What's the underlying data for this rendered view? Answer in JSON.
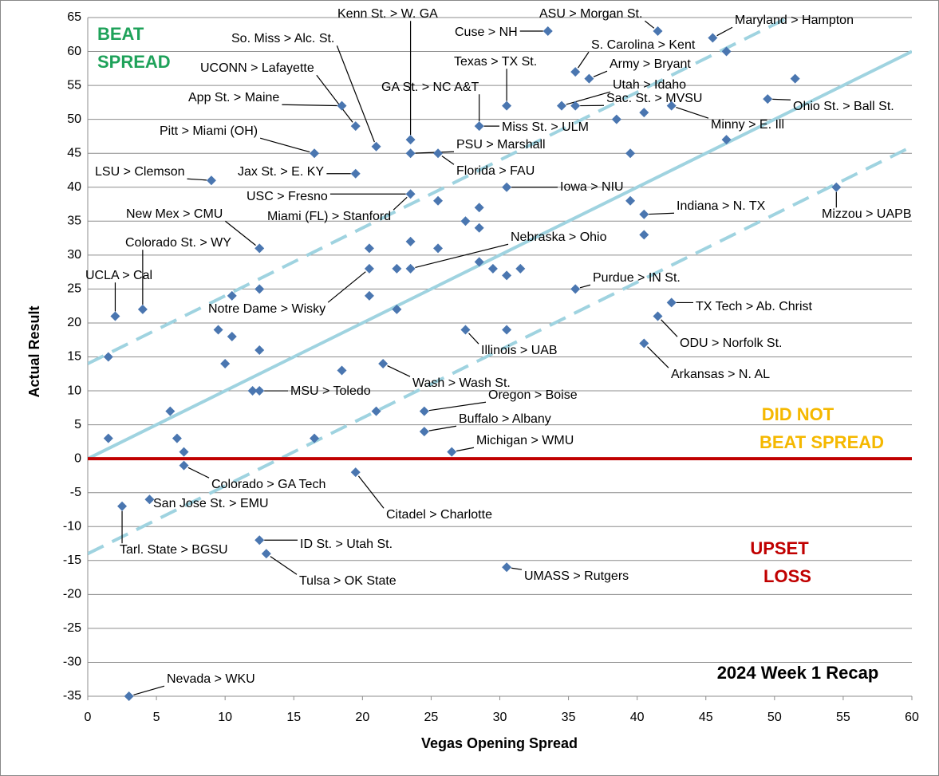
{
  "chart_data": {
    "type": "scatter",
    "xlabel": "Vegas Opening Spread",
    "ylabel": "Actual Result",
    "color": "#4a76b0",
    "x": [
      1.5,
      1.5,
      2,
      2.5,
      3,
      4,
      4.5,
      6,
      6.5,
      7,
      7,
      9,
      9.5,
      10,
      10.5,
      10.5,
      12,
      12.5,
      12.5,
      12.5,
      12.5,
      12.5,
      13,
      16.5,
      16.5,
      18.5,
      18.5,
      19.5,
      19.5,
      19.5,
      20.5,
      20.5,
      20.5,
      21,
      21,
      21.5,
      22.5,
      22.5,
      23.5,
      23.5,
      23.5,
      23.5,
      23.5,
      24.5,
      24.5,
      25.5,
      25.5,
      25.5,
      26.5,
      27.5,
      27.5,
      28.5,
      28.5,
      28.5,
      28.5,
      29.5,
      30.5,
      30.5,
      30.5,
      30.5,
      30.5,
      31.5,
      33.5,
      34.5,
      35.5,
      35.5,
      35.5,
      36.5,
      38.5,
      39.5,
      39.5,
      40.5,
      40.5,
      40.5,
      40.5,
      41.5,
      41.5,
      42.5,
      42.5,
      45.5,
      46.5,
      46.5,
      49.5,
      51.5,
      54.5
    ],
    "values": [
      3,
      15,
      21,
      -7,
      -35,
      22,
      -6,
      7,
      3,
      1,
      -1,
      41,
      19,
      14,
      24,
      18,
      10,
      10,
      31,
      25,
      16,
      -12,
      -14,
      3,
      45,
      13,
      52,
      49,
      42,
      -2,
      31,
      28,
      24,
      46,
      7,
      14,
      28,
      22,
      47,
      45,
      39,
      32,
      28,
      7,
      4,
      45,
      38,
      31,
      1,
      35,
      19,
      49,
      37,
      34,
      29,
      28,
      52,
      40,
      27,
      19,
      -16,
      28,
      63,
      52,
      57,
      52,
      25,
      56,
      50,
      45,
      38,
      51,
      36,
      33,
      17,
      63,
      21,
      52,
      23,
      62,
      60,
      47,
      53,
      56,
      40
    ],
    "xlim": [
      0,
      60
    ],
    "xticks": [
      0,
      5,
      10,
      15,
      20,
      25,
      30,
      35,
      40,
      45,
      50,
      55,
      60
    ],
    "ylim": [
      -35,
      65
    ],
    "yticks": [
      -35,
      -30,
      -25,
      -20,
      -15,
      -10,
      -5,
      0,
      5,
      10,
      15,
      20,
      25,
      30,
      35,
      40,
      45,
      50,
      55,
      60,
      65
    ],
    "grid": true,
    "reference_lines": [
      {
        "slope": 1,
        "intercept": 0,
        "dashed": false,
        "color": "#9fd3e0"
      },
      {
        "slope": 1,
        "intercept": 14,
        "dashed": true,
        "color": "#9fd3e0"
      },
      {
        "slope": 1,
        "intercept": -14,
        "dashed": true,
        "color": "#9fd3e0"
      }
    ],
    "zero_line": {
      "y": 0,
      "color": "#c00000"
    },
    "annotations": [
      "Nevada > WKU",
      "Tarl. State > BGSU",
      "San Jose St. > EMU",
      "Colorado > GA Tech",
      "ID St. > Utah St.",
      "Tulsa > OK State",
      "Citadel > Charlotte",
      "MSU > Toledo",
      "Michigan > WMU",
      "Buffalo > Albany",
      "Oregon > Boise",
      "Wash > Wash St.",
      "Illinois > UAB",
      "Notre Dame > Wisky",
      "UCLA > Cal",
      "Colorado St. > WY",
      "New Mex > CMU",
      "Miami (FL) > Stanford",
      "USC > Fresno",
      "LSU > Clemson",
      "Jax St. > E. KY",
      "Pitt > Miami (OH)",
      "App St. > Maine",
      "UCONN > Lafayette",
      "So. Miss > Alc. St.",
      "Kenn St. > W. GA",
      "GA St. > NC A&T",
      "Miss St. > ULM",
      "PSU > Marshall",
      "Florida > FAU",
      "Nebraska > Ohio",
      "Texas > TX St.",
      "Cuse > NH",
      "ASU > Morgan St.",
      "S. Carolina > Kent",
      "Army > Bryant",
      "Utah > Idaho",
      "Sac. St. > MVSU",
      "Iowa > NIU",
      "Purdue > IN St.",
      "Maryland > Hampton",
      "Minny > E. Ill",
      "Ohio St. > Ball St.",
      "Indiana > N. TX",
      "Mizzou > UAPB",
      "TX Tech > Ab. Christ",
      "ODU > Norfolk St.",
      "Arkansas > N. AL",
      "UMASS > Rutgers"
    ],
    "regions": [
      {
        "lines": [
          "BEAT",
          "SPREAD"
        ],
        "color": "#1fa25a"
      },
      {
        "lines": [
          "DID NOT",
          "BEAT SPREAD"
        ],
        "color": "#f5b800"
      },
      {
        "lines": [
          "UPSET",
          "LOSS"
        ],
        "color": "#c00000"
      }
    ],
    "title": "2024 Week 1 Recap"
  }
}
